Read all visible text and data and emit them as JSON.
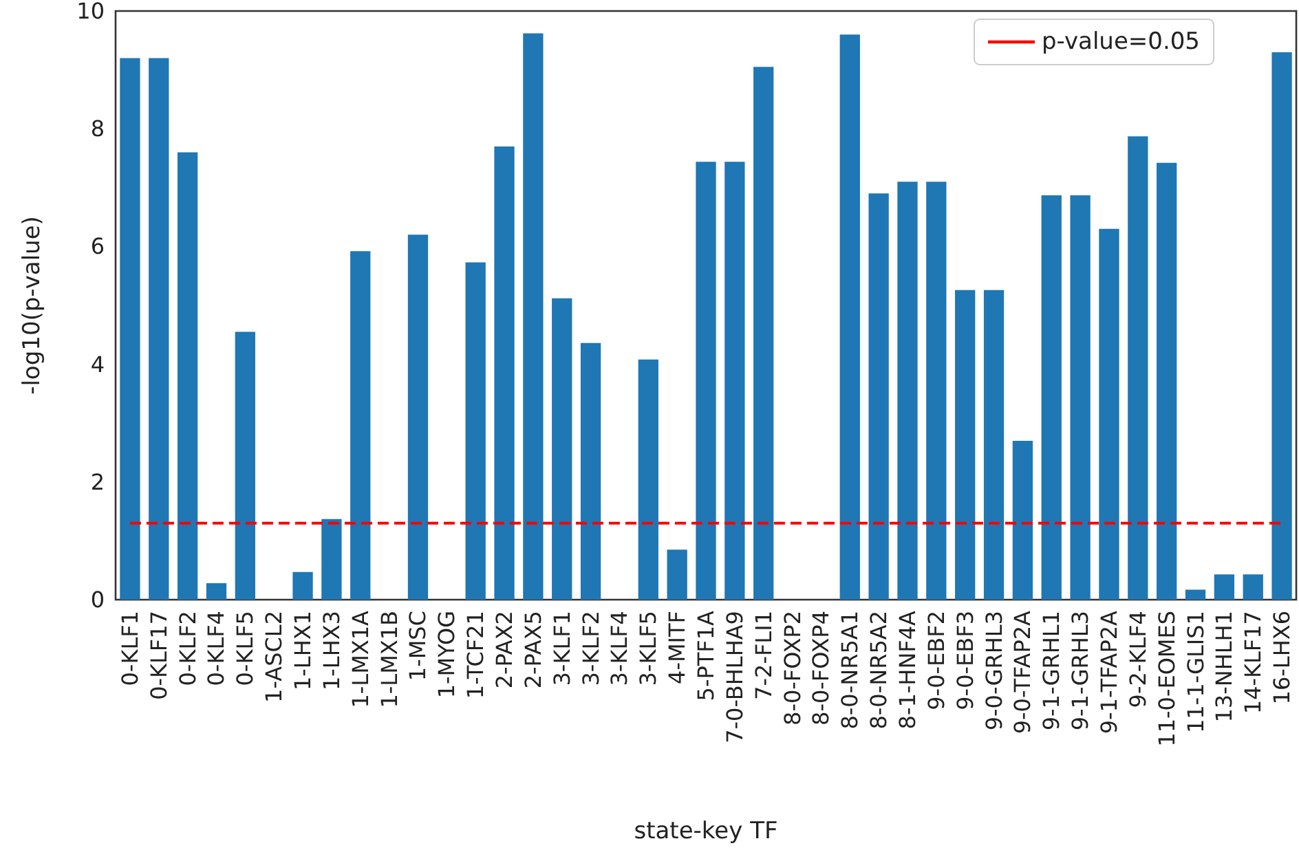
{
  "chart_data": {
    "type": "bar",
    "xlabel": "state-key TF",
    "ylabel": "-log10(p-value)",
    "categories": [
      "0-KLF1",
      "0-KLF17",
      "0-KLF2",
      "0-KLF4",
      "0-KLF5",
      "1-ASCL2",
      "1-LHX1",
      "1-LHX3",
      "1-LMX1A",
      "1-LMX1B",
      "1-MSC",
      "1-MYOG",
      "1-TCF21",
      "2-PAX2",
      "2-PAX5",
      "3-KLF1",
      "3-KLF2",
      "3-KLF4",
      "3-KLF5",
      "4-MITF",
      "5-PTF1A",
      "7-0-BHLHA9",
      "7-2-FLI1",
      "8-0-FOXP2",
      "8-0-FOXP4",
      "8-0-NR5A1",
      "8-0-NR5A2",
      "8-1-HNF4A",
      "9-0-EBF2",
      "9-0-EBF3",
      "9-0-GRHL3",
      "9-0-TFAP2A",
      "9-1-GRHL1",
      "9-1-GRHL3",
      "9-1-TFAP2A",
      "9-2-KLF4",
      "11-0-EOMES",
      "11-1-GLIS1",
      "13-NHLH1",
      "14-KLF17",
      "16-LHX6"
    ],
    "series": [
      {
        "color": "#1f77b4",
        "values": [
          9.2,
          9.2,
          7.6,
          0.28,
          4.55,
          0,
          0.47,
          1.37,
          5.92,
          0,
          6.2,
          0,
          5.73,
          7.7,
          9.62,
          5.12,
          4.36,
          0,
          4.08,
          0.85,
          7.44,
          7.44,
          9.05,
          0,
          0,
          9.6,
          6.9,
          7.1,
          7.1,
          5.26,
          5.26,
          2.7,
          6.87,
          6.87,
          6.3,
          7.87,
          7.42,
          0.17,
          0.43,
          0.43,
          9.3
        ]
      },
      {
        "type": "line",
        "name": "p-value=0.05",
        "color": "#ff0000",
        "line_style": "dashed",
        "values": [
          1.3,
          1.3,
          1.3,
          1.3,
          1.3,
          1.3,
          1.3,
          1.3,
          1.3,
          1.3,
          1.3,
          1.3,
          1.3,
          1.3,
          1.3,
          1.3,
          1.3,
          1.3,
          1.3,
          1.3,
          1.3,
          1.3,
          1.3,
          1.3,
          1.3,
          1.3,
          1.3,
          1.3,
          1.3,
          1.3,
          1.3,
          1.3,
          1.3,
          1.3,
          1.3,
          1.3,
          1.3,
          1.3,
          1.3,
          1.3,
          1.3
        ]
      }
    ],
    "ylim": [
      0,
      10
    ],
    "yticks": [
      0,
      2,
      4,
      6,
      8,
      10
    ],
    "grid": false,
    "legend": "top right"
  }
}
